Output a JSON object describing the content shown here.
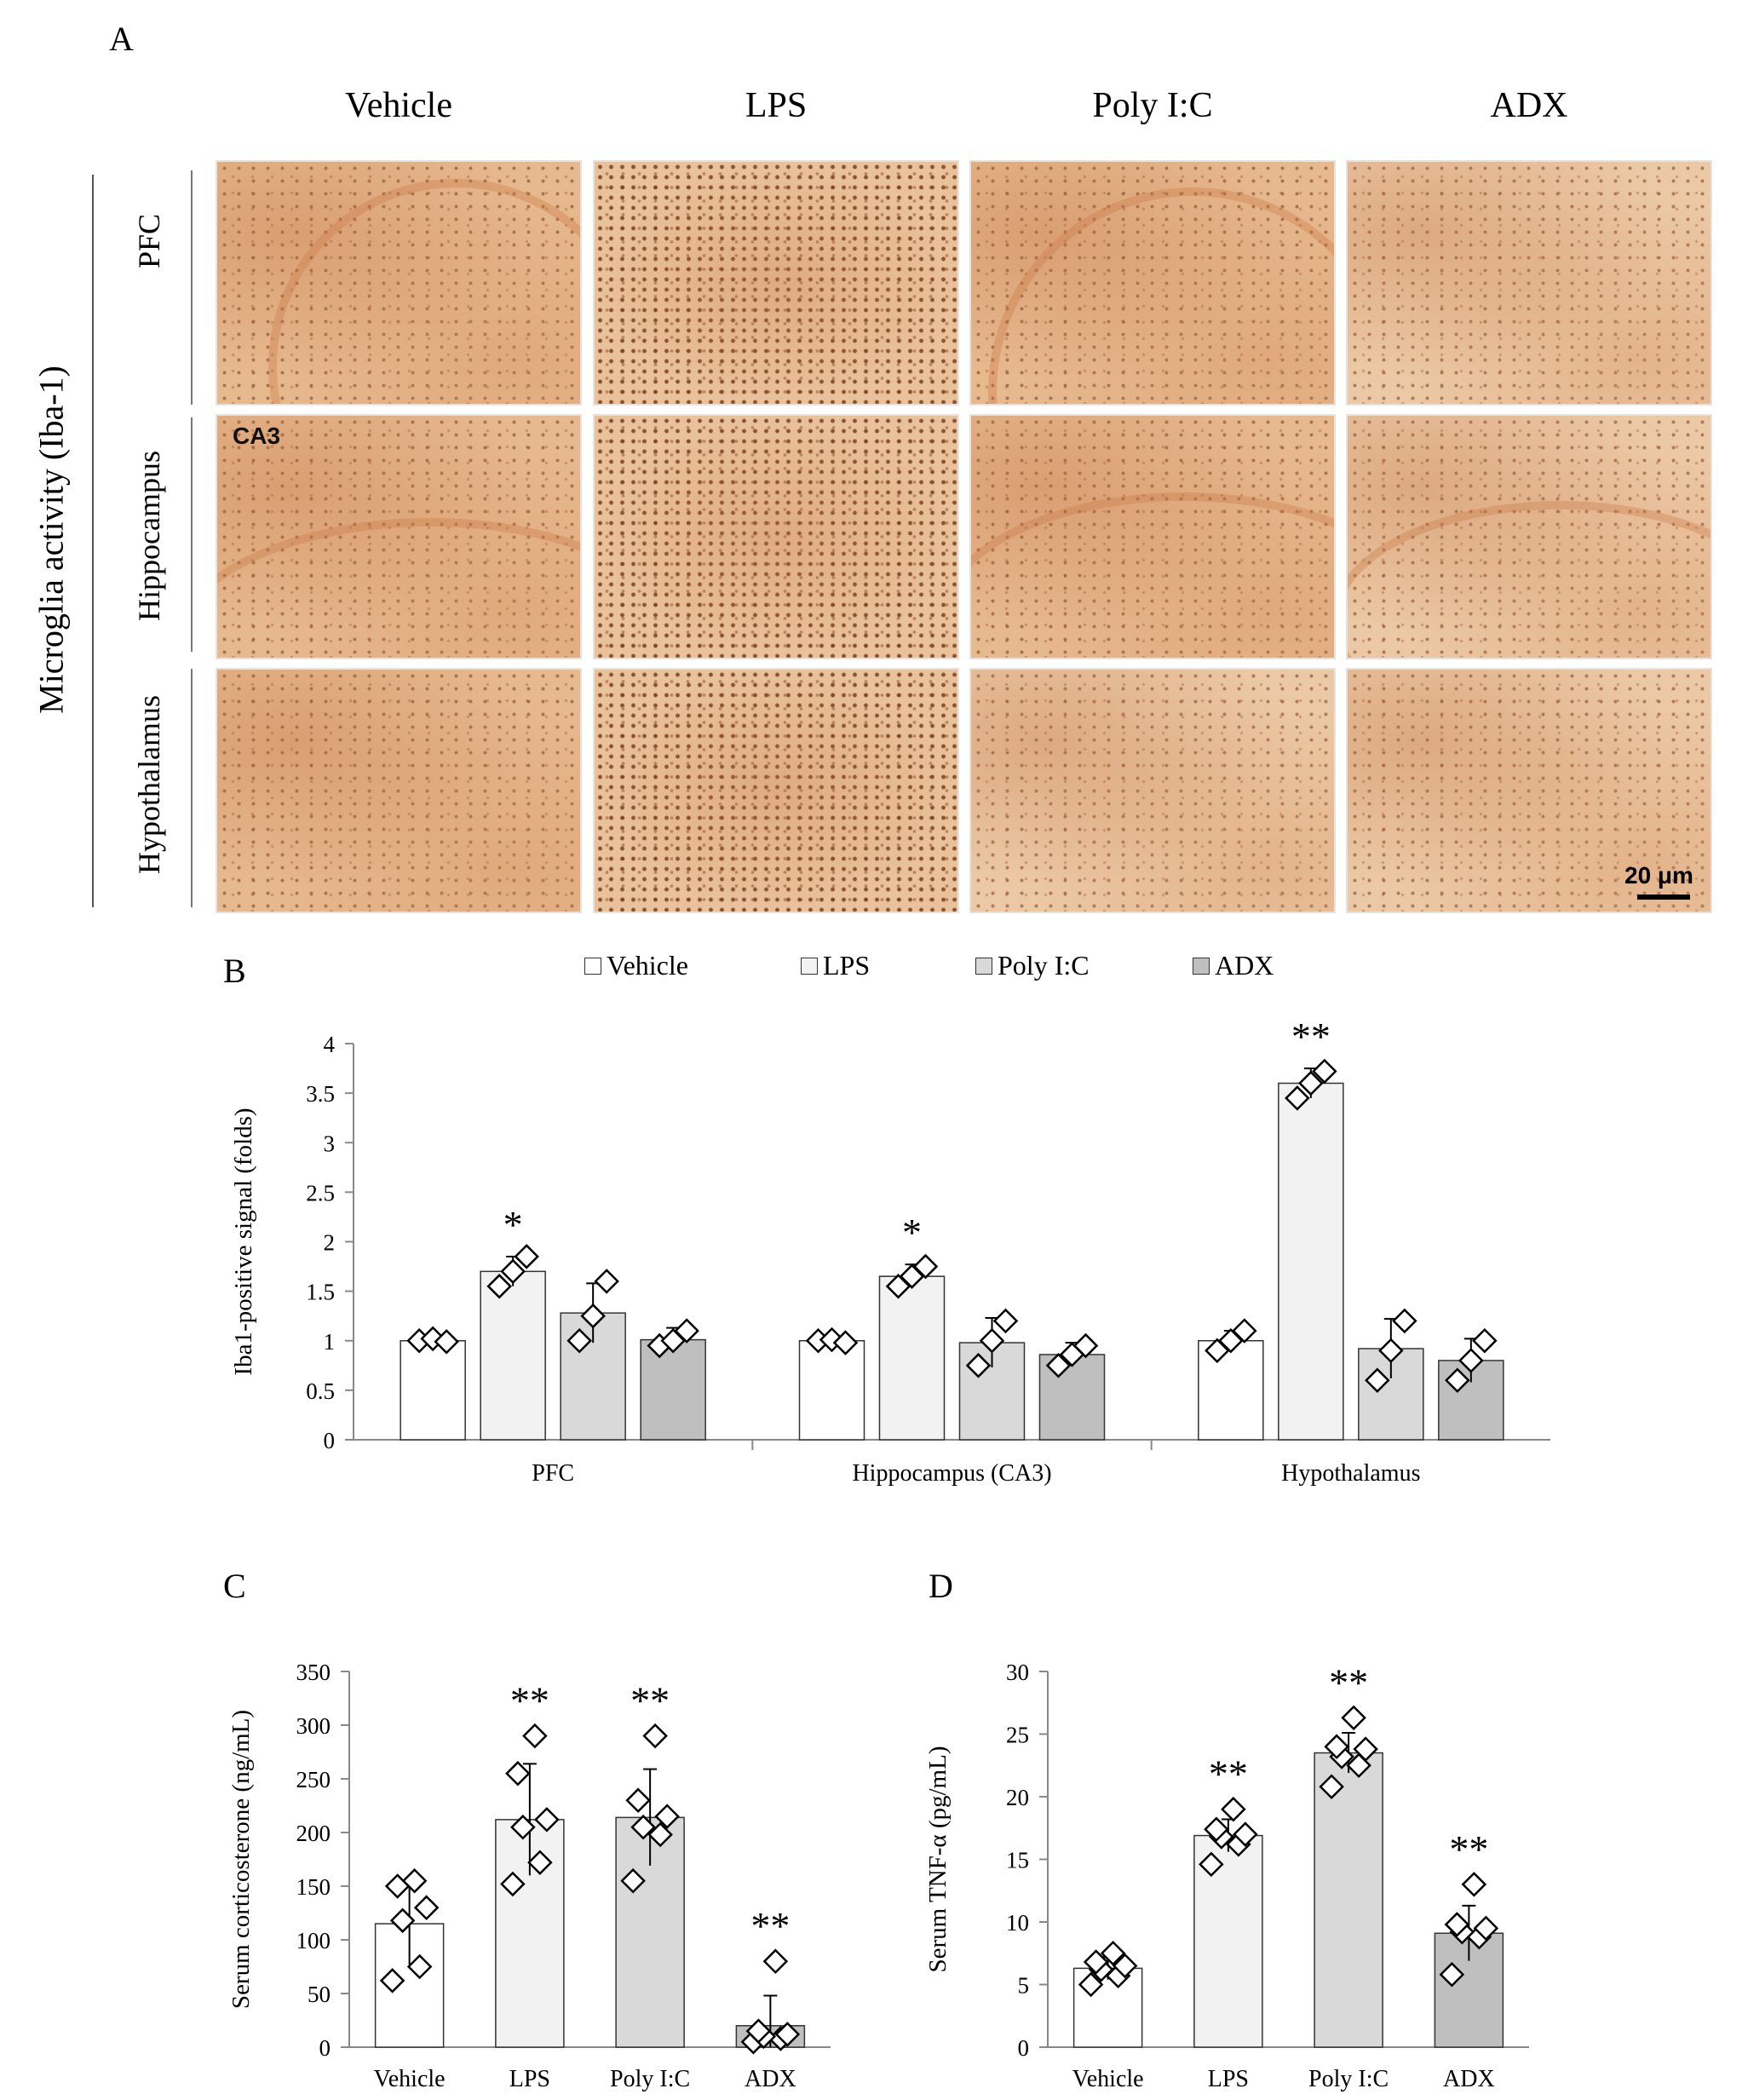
{
  "panels": {
    "A": "A",
    "B": "B",
    "C": "C",
    "D": "D"
  },
  "panelA": {
    "columns": [
      "Vehicle",
      "LPS",
      "Poly I:C",
      "ADX"
    ],
    "rows": [
      "PFC",
      "Hippocampus",
      "Hypothalamus"
    ],
    "side_title": "Microglia activity (Iba-1)",
    "region_label": "CA3",
    "scale_label": "20 μm"
  },
  "colors": {
    "vehicle": "#ffffff",
    "lps": "#f2f2f2",
    "polyic": "#d9d9d9",
    "adx": "#bfbfbf",
    "stain": "#e7b98f"
  },
  "chart_data": [
    {
      "id": "B",
      "type": "bar",
      "ylabel": "Iba1-positive signal (folds)",
      "ylim": [
        0,
        4
      ],
      "yticks": [
        0,
        0.5,
        1,
        1.5,
        2,
        2.5,
        3,
        3.5,
        4
      ],
      "categories": [
        "PFC",
        "Hippocampus (CA3)",
        "Hypothalamus"
      ],
      "legend": [
        "Vehicle",
        "LPS",
        "Poly I:C",
        "ADX"
      ],
      "series": [
        {
          "name": "Vehicle",
          "values": [
            1.0,
            1.0,
            1.0
          ],
          "error": [
            0.02,
            0.02,
            0.1
          ],
          "points": [
            [
              1.0,
              1.02,
              0.99
            ],
            [
              1.0,
              1.01,
              0.98
            ],
            [
              0.9,
              1.0,
              1.1
            ]
          ],
          "sig": [
            "",
            "",
            ""
          ]
        },
        {
          "name": "LPS",
          "values": [
            1.7,
            1.65,
            3.6
          ],
          "error": [
            0.15,
            0.12,
            0.15
          ],
          "points": [
            [
              1.55,
              1.7,
              1.85
            ],
            [
              1.55,
              1.65,
              1.75
            ],
            [
              3.45,
              3.6,
              3.72
            ]
          ],
          "sig": [
            "*",
            "*",
            "**"
          ]
        },
        {
          "name": "Poly I:C",
          "values": [
            1.28,
            0.98,
            0.92
          ],
          "error": [
            0.3,
            0.25,
            0.3
          ],
          "points": [
            [
              1.0,
              1.25,
              1.6
            ],
            [
              0.75,
              1.0,
              1.2
            ],
            [
              0.6,
              0.9,
              1.2
            ]
          ],
          "sig": [
            "",
            "",
            ""
          ]
        },
        {
          "name": "ADX",
          "values": [
            1.01,
            0.86,
            0.8
          ],
          "error": [
            0.12,
            0.12,
            0.22
          ],
          "points": [
            [
              0.95,
              1.0,
              1.1
            ],
            [
              0.75,
              0.86,
              0.95
            ],
            [
              0.6,
              0.8,
              1.0
            ]
          ],
          "sig": [
            "",
            "",
            ""
          ]
        }
      ]
    },
    {
      "id": "C",
      "type": "bar",
      "ylabel": "Serum corticosterone (ng/mL)",
      "ylim": [
        0,
        350
      ],
      "yticks": [
        0,
        50,
        100,
        150,
        200,
        250,
        300,
        350
      ],
      "categories": [
        "Vehicle",
        "LPS",
        "Poly I:C",
        "ADX"
      ],
      "values": [
        115,
        212,
        214,
        20
      ],
      "error": [
        38,
        52,
        45,
        28
      ],
      "points": [
        [
          62,
          75,
          118,
          130,
          150,
          155
        ],
        [
          152,
          172,
          205,
          212,
          255,
          290
        ],
        [
          155,
          198,
          205,
          215,
          230,
          290
        ],
        [
          5,
          8,
          10,
          12,
          15,
          80
        ]
      ],
      "sig": [
        "",
        "**",
        "**",
        "**"
      ]
    },
    {
      "id": "D",
      "type": "bar",
      "ylabel": "Serum TNF-α (pg/mL)",
      "ylim": [
        0,
        30
      ],
      "yticks": [
        0,
        5,
        10,
        15,
        20,
        25,
        30
      ],
      "categories": [
        "Vehicle",
        "LPS",
        "Poly I:C",
        "ADX"
      ],
      "values": [
        6.3,
        16.9,
        23.5,
        9.1
      ],
      "error": [
        0.9,
        1.3,
        1.6,
        2.2
      ],
      "points": [
        [
          5.0,
          5.7,
          6.2,
          6.5,
          6.8,
          7.5
        ],
        [
          14.6,
          16.2,
          16.8,
          17.0,
          17.4,
          19.0
        ],
        [
          20.8,
          22.5,
          23.2,
          23.8,
          24.0,
          26.3
        ],
        [
          5.8,
          8.8,
          9.2,
          9.5,
          9.8,
          13.0
        ]
      ],
      "sig": [
        "",
        "**",
        "**",
        "**"
      ]
    }
  ]
}
